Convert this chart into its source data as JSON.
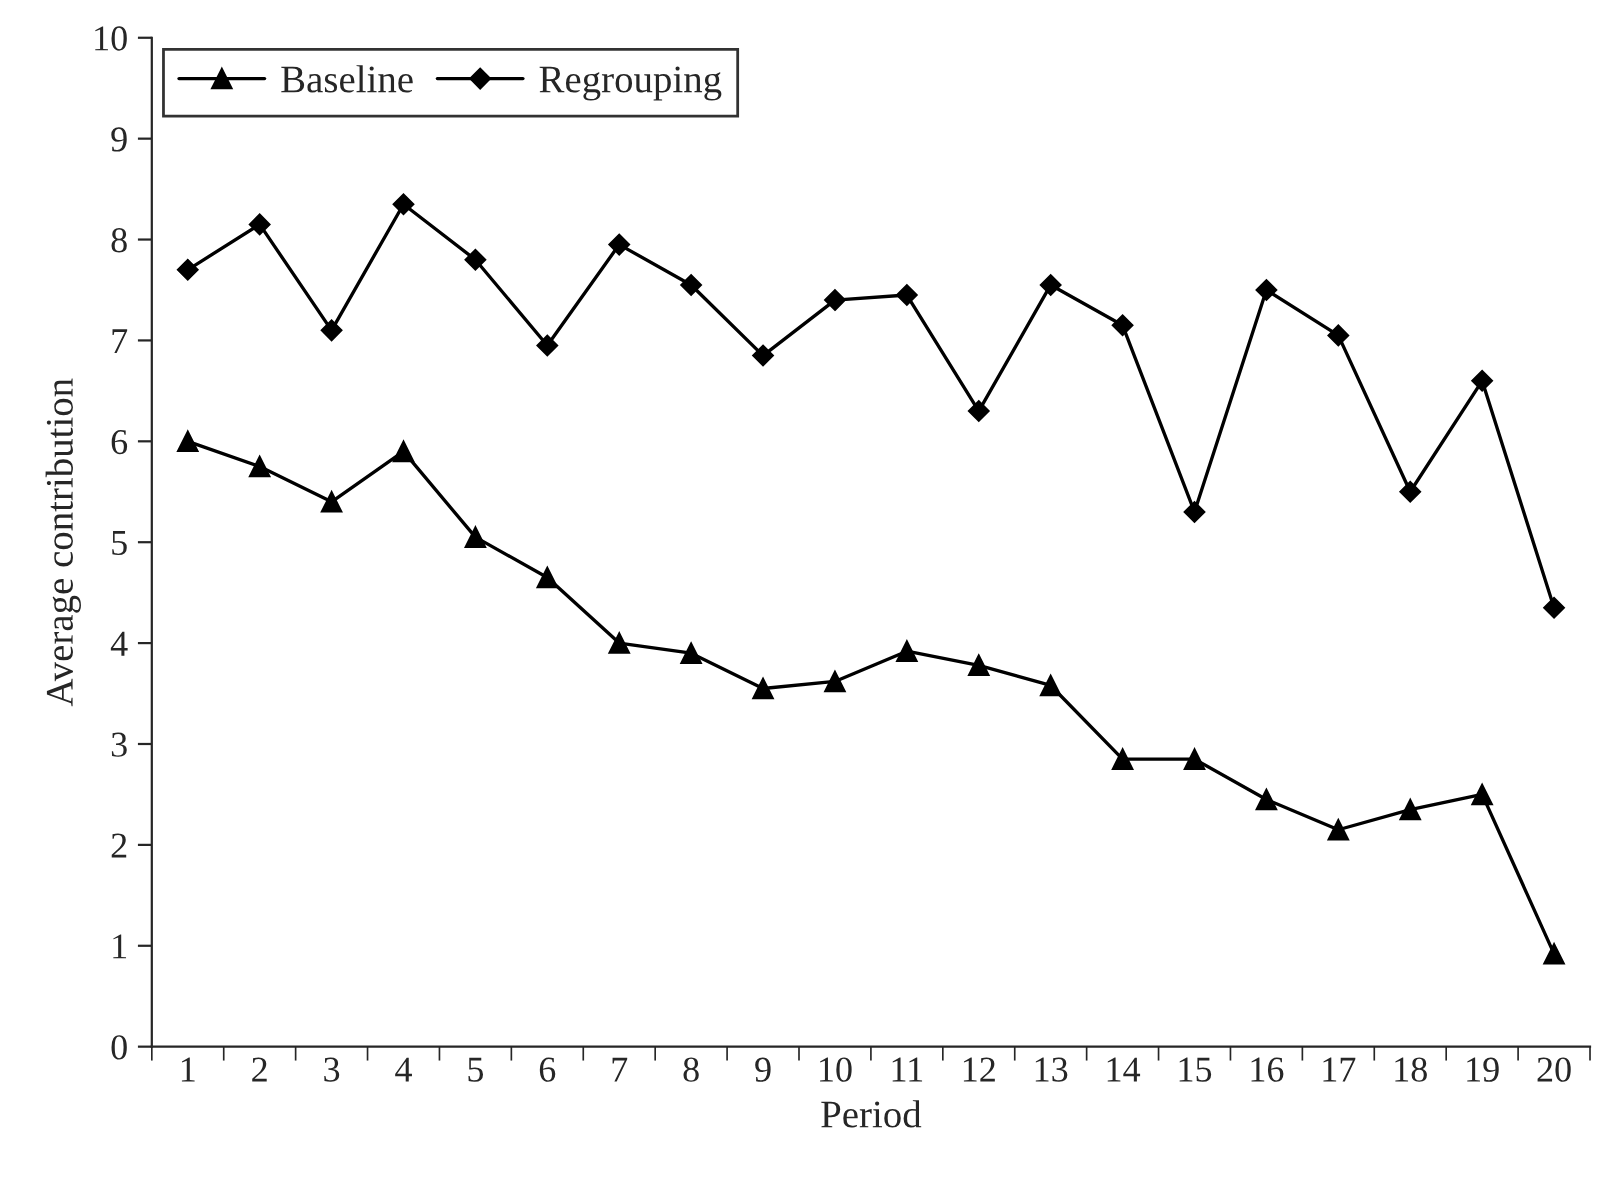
{
  "chart_data": {
    "type": "line",
    "xlabel": "Period",
    "ylabel": "Average contribution",
    "categories": [
      "1",
      "2",
      "3",
      "4",
      "5",
      "6",
      "7",
      "8",
      "9",
      "10",
      "11",
      "12",
      "13",
      "14",
      "15",
      "16",
      "17",
      "18",
      "19",
      "20"
    ],
    "series": [
      {
        "name": "Baseline",
        "color": "#000000",
        "marker": "triangle",
        "values": [
          6.0,
          5.75,
          5.4,
          5.9,
          5.05,
          4.65,
          4.0,
          3.9,
          3.55,
          3.62,
          3.92,
          3.78,
          3.58,
          2.85,
          2.85,
          2.45,
          2.15,
          2.35,
          2.5,
          0.92
        ]
      },
      {
        "name": "Regrouping",
        "color": "#000000",
        "marker": "diamond",
        "values": [
          7.7,
          8.15,
          7.1,
          8.35,
          7.8,
          6.95,
          7.95,
          7.55,
          6.85,
          7.4,
          7.45,
          6.3,
          7.55,
          7.15,
          5.3,
          7.5,
          7.05,
          5.5,
          6.6,
          4.35
        ]
      }
    ],
    "ylim": [
      0,
      10
    ],
    "yticks": [
      0,
      1,
      2,
      3,
      4,
      5,
      6,
      7,
      8,
      9,
      10
    ],
    "grid": false,
    "legend": "top left",
    "line_style": "solid"
  }
}
